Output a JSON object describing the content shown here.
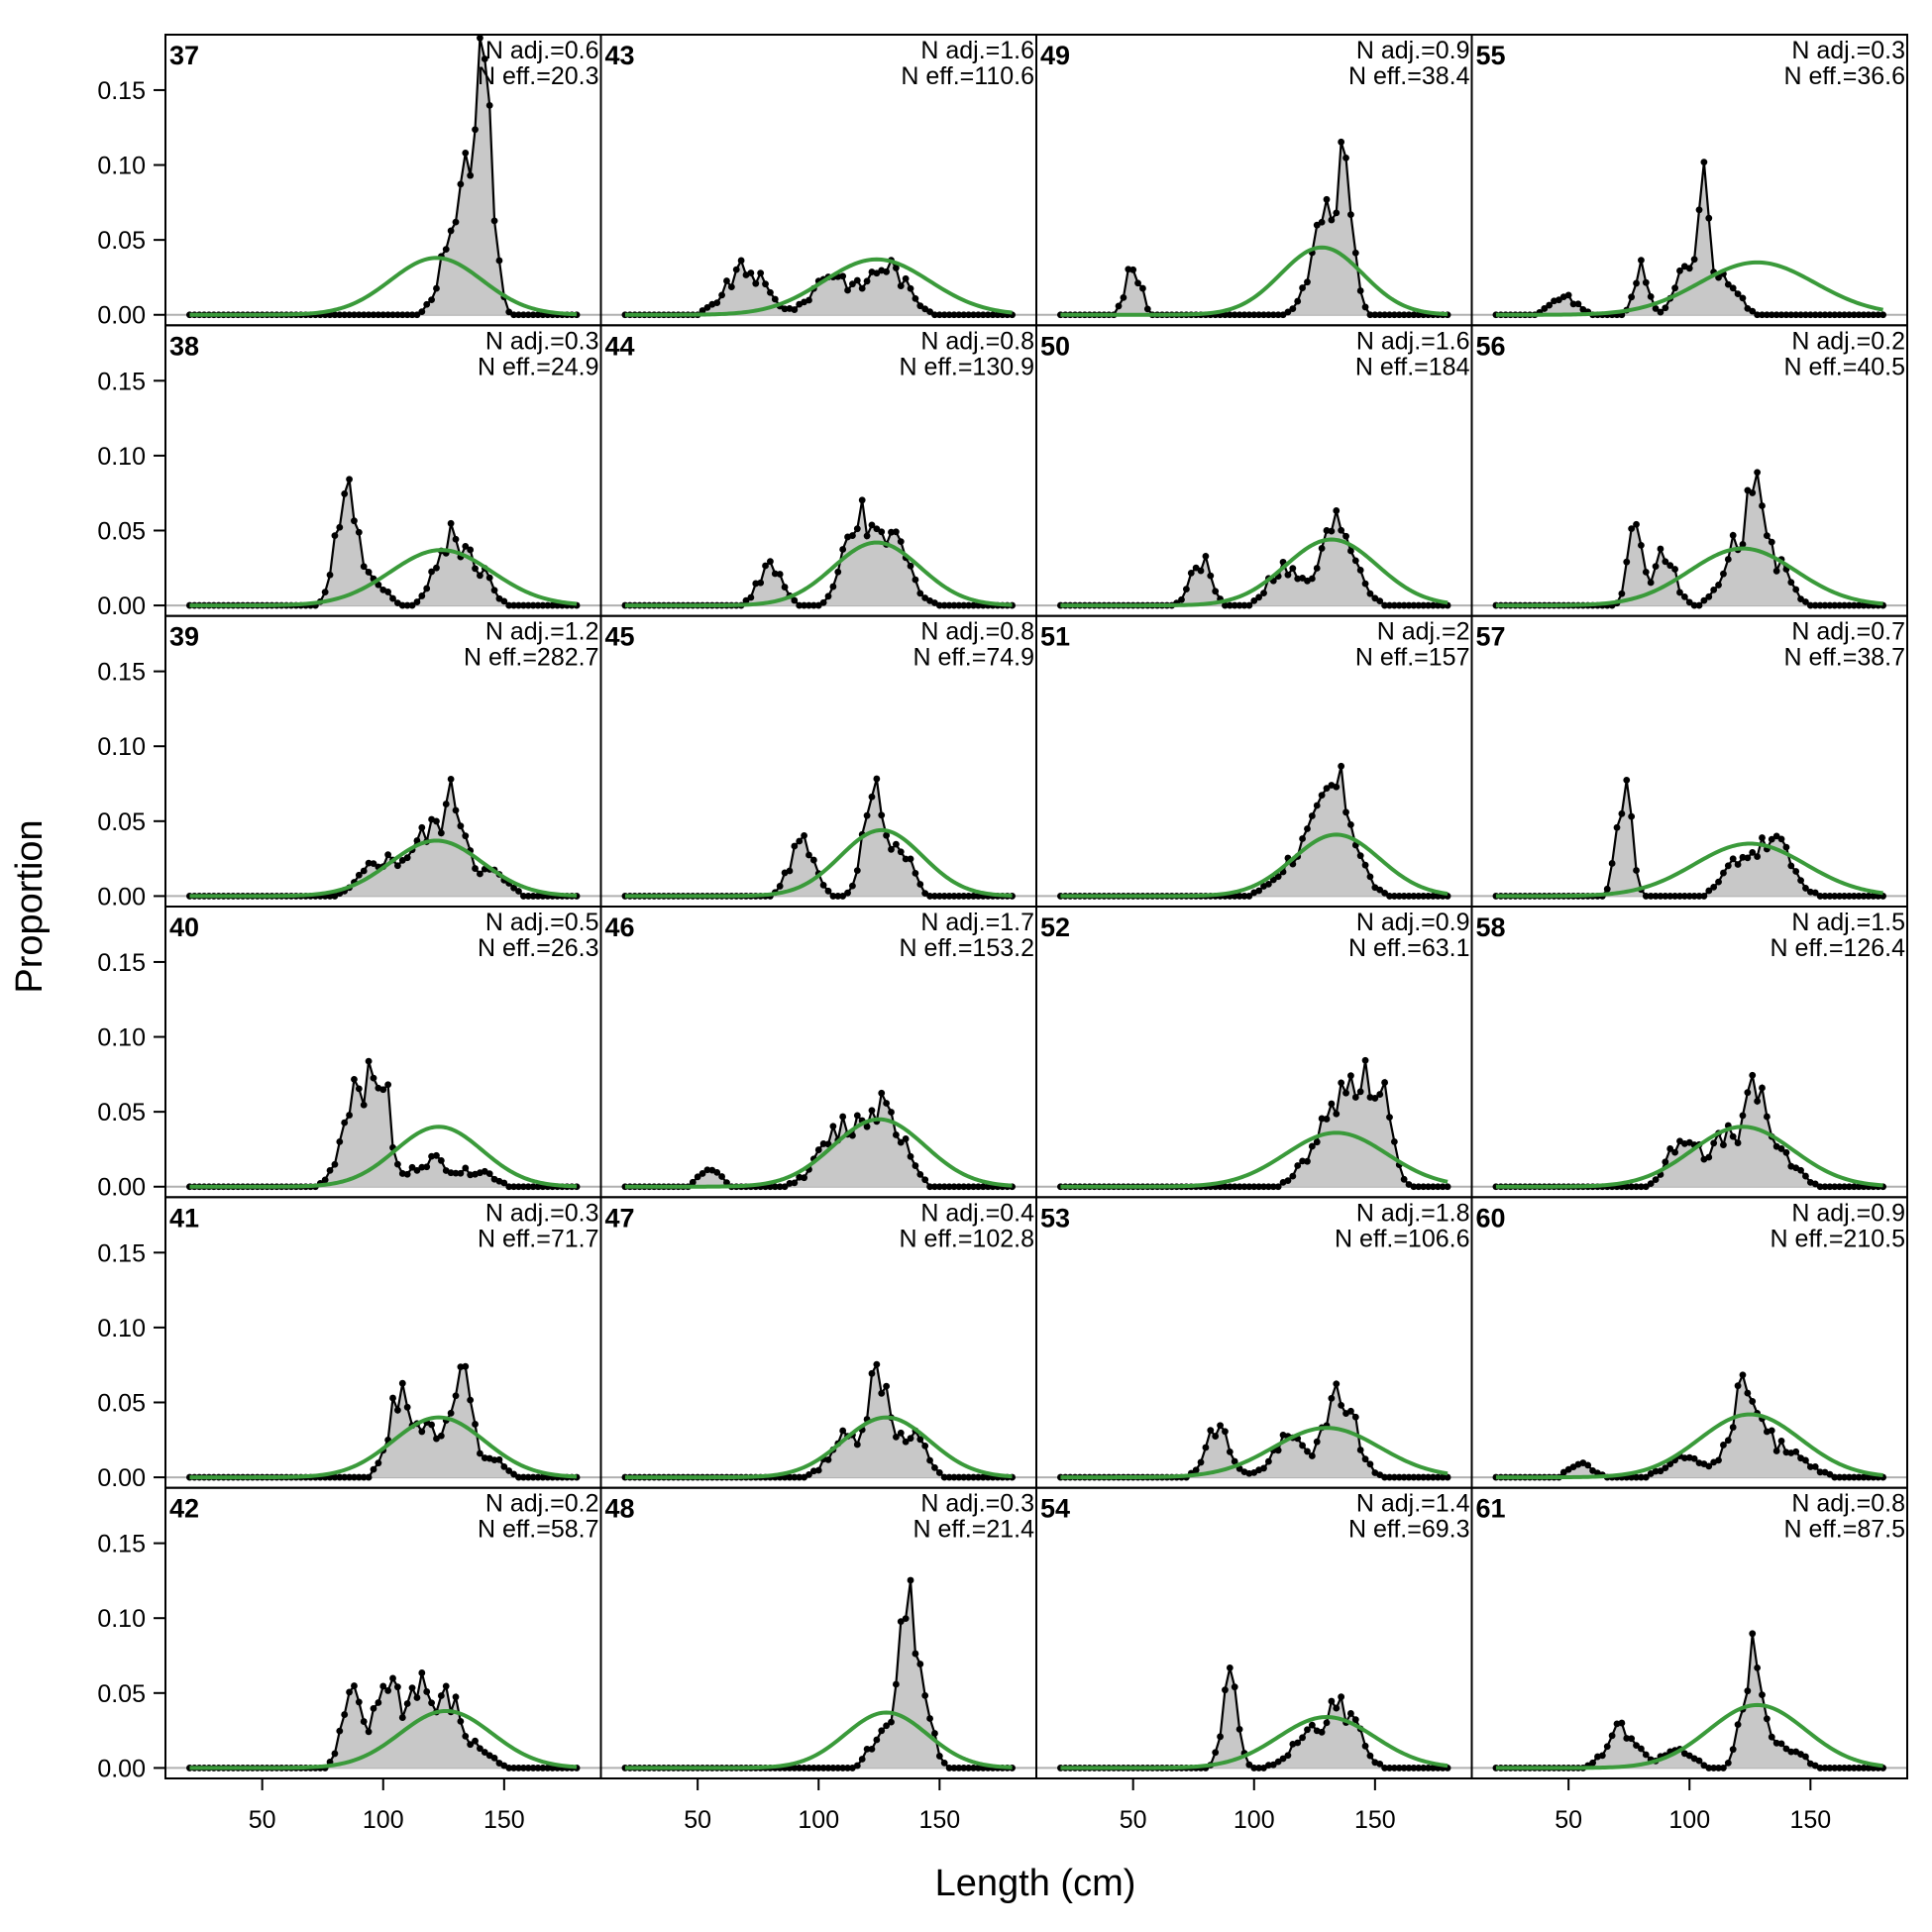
{
  "chart_data": {
    "type": "area",
    "xlabel": "Length (cm)",
    "ylabel": "Proportion",
    "xlim": [
      10,
      190
    ],
    "ylim": [
      -0.007,
      0.187
    ],
    "x_ticks": [
      50,
      100,
      150
    ],
    "y_ticks": [
      0.0,
      0.05,
      0.1,
      0.15
    ],
    "y_tick_labels": [
      "0.00",
      "0.05",
      "0.10",
      "0.15"
    ],
    "grid": false,
    "layout": {
      "rows": 6,
      "cols": 4,
      "order": "column-major"
    },
    "colors": {
      "observed_fill": "#c8c8c8",
      "observed_line": "#000000",
      "expected": "#3a9a3a",
      "zero_line": "#b0b0b0"
    },
    "panels": [
      {
        "label": "37",
        "n_adj": "N adj.=0.6",
        "n_eff": "N eff.=20.3",
        "obs_peaks": [
          [
            125,
            0.028,
            4
          ],
          [
            133,
            0.06,
            4
          ],
          [
            139,
            0.11,
            3
          ],
          [
            144,
            0.085,
            3
          ]
        ],
        "exp": {
          "mu": 122,
          "sd": 19,
          "h": 0.038
        }
      },
      {
        "label": "38",
        "n_adj": "N adj.=0.3",
        "n_eff": "N eff.=24.9",
        "obs_peaks": [
          [
            85,
            0.092,
            4
          ],
          [
            97,
            0.018,
            4
          ],
          [
            128,
            0.045,
            6
          ],
          [
            140,
            0.02,
            5
          ]
        ],
        "exp": {
          "mu": 124,
          "sd": 21,
          "h": 0.037
        }
      },
      {
        "label": "39",
        "n_adj": "N adj.=1.2",
        "n_eff": "N eff.=282.7",
        "obs_peaks": [
          [
            98,
            0.022,
            7
          ],
          [
            118,
            0.038,
            8
          ],
          [
            130,
            0.05,
            5
          ],
          [
            145,
            0.015,
            6
          ]
        ],
        "exp": {
          "mu": 122,
          "sd": 19,
          "h": 0.037
        }
      },
      {
        "label": "40",
        "n_adj": "N adj.=0.5",
        "n_eff": "N eff.=26.3",
        "obs_peaks": [
          [
            90,
            0.075,
            6
          ],
          [
            100,
            0.055,
            3
          ],
          [
            120,
            0.018,
            8
          ],
          [
            140,
            0.01,
            6
          ]
        ],
        "exp": {
          "mu": 123,
          "sd": 18,
          "h": 0.04
        }
      },
      {
        "label": "41",
        "n_adj": "N adj.=0.3",
        "n_eff": "N eff.=71.7",
        "obs_peaks": [
          [
            107,
            0.052,
            5
          ],
          [
            120,
            0.03,
            5
          ],
          [
            132,
            0.075,
            4
          ],
          [
            145,
            0.012,
            5
          ]
        ],
        "exp": {
          "mu": 123,
          "sd": 19,
          "h": 0.04
        }
      },
      {
        "label": "42",
        "n_adj": "N adj.=0.2",
        "n_eff": "N eff.=58.7",
        "obs_peaks": [
          [
            87,
            0.045,
            4
          ],
          [
            102,
            0.06,
            5
          ],
          [
            115,
            0.055,
            4
          ],
          [
            127,
            0.045,
            5
          ],
          [
            140,
            0.012,
            5
          ]
        ],
        "exp": {
          "mu": 126,
          "sd": 19,
          "h": 0.038
        }
      },
      {
        "label": "43",
        "n_adj": "N adj.=1.6",
        "n_eff": "N eff.=110.6",
        "obs_peaks": [
          [
            70,
            0.03,
            8
          ],
          [
            105,
            0.028,
            7
          ],
          [
            128,
            0.033,
            8
          ]
        ],
        "exp": {
          "mu": 124,
          "sd": 22,
          "h": 0.037
        }
      },
      {
        "label": "44",
        "n_adj": "N adj.=0.8",
        "n_eff": "N eff.=130.9",
        "obs_peaks": [
          [
            80,
            0.025,
            5
          ],
          [
            115,
            0.055,
            5
          ],
          [
            130,
            0.045,
            7
          ]
        ],
        "exp": {
          "mu": 124,
          "sd": 18,
          "h": 0.042
        }
      },
      {
        "label": "45",
        "n_adj": "N adj.=0.8",
        "n_eff": "N eff.=74.9",
        "obs_peaks": [
          [
            93,
            0.035,
            5
          ],
          [
            123,
            0.08,
            4
          ],
          [
            135,
            0.03,
            4
          ]
        ],
        "exp": {
          "mu": 126,
          "sd": 17,
          "h": 0.044
        }
      },
      {
        "label": "46",
        "n_adj": "N adj.=1.7",
        "n_eff": "N eff.=153.2",
        "obs_peaks": [
          [
            55,
            0.012,
            4
          ],
          [
            110,
            0.038,
            9
          ],
          [
            128,
            0.052,
            7
          ]
        ],
        "exp": {
          "mu": 125,
          "sd": 19,
          "h": 0.045
        }
      },
      {
        "label": "47",
        "n_adj": "N adj.=0.4",
        "n_eff": "N eff.=102.8",
        "obs_peaks": [
          [
            110,
            0.025,
            6
          ],
          [
            125,
            0.07,
            5
          ],
          [
            140,
            0.025,
            5
          ]
        ],
        "exp": {
          "mu": 128,
          "sd": 18,
          "h": 0.04
        }
      },
      {
        "label": "48",
        "n_adj": "N adj.=0.3",
        "n_eff": "N eff.=21.4",
        "obs_peaks": [
          [
            125,
            0.022,
            4
          ],
          [
            137,
            0.13,
            4
          ],
          [
            146,
            0.02,
            3
          ]
        ],
        "exp": {
          "mu": 128,
          "sd": 17,
          "h": 0.037
        }
      },
      {
        "label": "49",
        "n_adj": "N adj.=0.9",
        "n_eff": "N eff.=38.4",
        "obs_peaks": [
          [
            50,
            0.035,
            3
          ],
          [
            130,
            0.06,
            6
          ],
          [
            138,
            0.085,
            3
          ]
        ],
        "exp": {
          "mu": 128,
          "sd": 17,
          "h": 0.045
        }
      },
      {
        "label": "50",
        "n_adj": "N adj.=1.6",
        "n_eff": "N eff.=184",
        "obs_peaks": [
          [
            78,
            0.03,
            4
          ],
          [
            112,
            0.025,
            6
          ],
          [
            135,
            0.055,
            7
          ]
        ],
        "exp": {
          "mu": 132,
          "sd": 19,
          "h": 0.044
        }
      },
      {
        "label": "51",
        "n_adj": "N adj.=2",
        "n_eff": "N eff.=157",
        "obs_peaks": [
          [
            120,
            0.028,
            9
          ],
          [
            135,
            0.065,
            7
          ]
        ],
        "exp": {
          "mu": 134,
          "sd": 18,
          "h": 0.041
        }
      },
      {
        "label": "52",
        "n_adj": "N adj.=0.9",
        "n_eff": "N eff.=63.1",
        "obs_peaks": [
          [
            130,
            0.035,
            8
          ],
          [
            142,
            0.065,
            6
          ],
          [
            153,
            0.055,
            4
          ]
        ],
        "exp": {
          "mu": 134,
          "sd": 21,
          "h": 0.036
        }
      },
      {
        "label": "53",
        "n_adj": "N adj.=1.8",
        "n_eff": "N eff.=106.6",
        "obs_peaks": [
          [
            85,
            0.032,
            5
          ],
          [
            115,
            0.025,
            7
          ],
          [
            136,
            0.055,
            6
          ]
        ],
        "exp": {
          "mu": 130,
          "sd": 22,
          "h": 0.033
        }
      },
      {
        "label": "54",
        "n_adj": "N adj.=1.4",
        "n_eff": "N eff.=69.3",
        "obs_peaks": [
          [
            90,
            0.065,
            3
          ],
          [
            125,
            0.025,
            8
          ],
          [
            138,
            0.032,
            6
          ]
        ],
        "exp": {
          "mu": 130,
          "sd": 20,
          "h": 0.034
        }
      },
      {
        "label": "55",
        "n_adj": "N adj.=0.3",
        "n_eff": "N eff.=36.6",
        "obs_peaks": [
          [
            48,
            0.012,
            5
          ],
          [
            80,
            0.03,
            3
          ],
          [
            98,
            0.028,
            4
          ],
          [
            106,
            0.095,
            2
          ],
          [
            115,
            0.025,
            5
          ]
        ],
        "exp": {
          "mu": 128,
          "sd": 24,
          "h": 0.035
        }
      },
      {
        "label": "56",
        "n_adj": "N adj.=0.2",
        "n_eff": "N eff.=40.5",
        "obs_peaks": [
          [
            78,
            0.06,
            3
          ],
          [
            90,
            0.035,
            4
          ],
          [
            120,
            0.04,
            6
          ],
          [
            128,
            0.085,
            3
          ],
          [
            137,
            0.025,
            5
          ]
        ],
        "exp": {
          "mu": 122,
          "sd": 22,
          "h": 0.038
        }
      },
      {
        "label": "57",
        "n_adj": "N adj.=0.7",
        "n_eff": "N eff.=38.7",
        "obs_peaks": [
          [
            73,
            0.075,
            3
          ],
          [
            120,
            0.022,
            6
          ],
          [
            135,
            0.035,
            7
          ]
        ],
        "exp": {
          "mu": 125,
          "sd": 23,
          "h": 0.035
        }
      },
      {
        "label": "58",
        "n_adj": "N adj.=1.5",
        "n_eff": "N eff.=126.4",
        "obs_peaks": [
          [
            98,
            0.035,
            6
          ],
          [
            115,
            0.03,
            6
          ],
          [
            128,
            0.058,
            5
          ],
          [
            140,
            0.015,
            6
          ]
        ],
        "exp": {
          "mu": 122,
          "sd": 21,
          "h": 0.04
        }
      },
      {
        "label": "60",
        "n_adj": "N adj.=0.9",
        "n_eff": "N eff.=210.5",
        "obs_peaks": [
          [
            55,
            0.008,
            5
          ],
          [
            98,
            0.015,
            7
          ],
          [
            123,
            0.055,
            6
          ],
          [
            140,
            0.02,
            8
          ]
        ],
        "exp": {
          "mu": 125,
          "sd": 21,
          "h": 0.042
        }
      },
      {
        "label": "61",
        "n_adj": "N adj.=0.8",
        "n_eff": "N eff.=87.5",
        "obs_peaks": [
          [
            72,
            0.025,
            6
          ],
          [
            95,
            0.012,
            6
          ],
          [
            126,
            0.075,
            4
          ],
          [
            140,
            0.015,
            6
          ]
        ],
        "exp": {
          "mu": 128,
          "sd": 20,
          "h": 0.042
        }
      }
    ]
  }
}
